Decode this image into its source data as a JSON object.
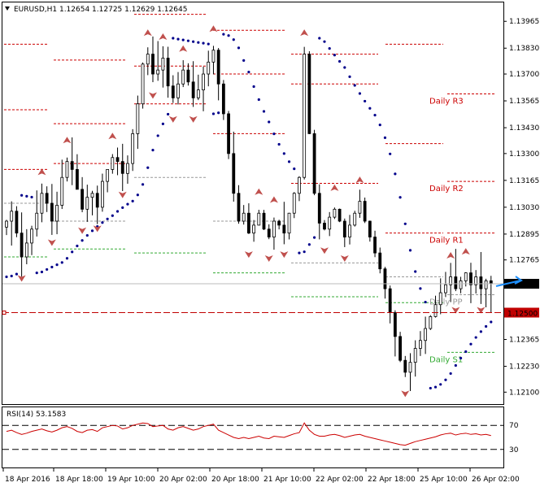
{
  "window": {
    "arrow_icon": "triangle-down-icon",
    "header": "EURUSD,H1  1.12654 1.12725 1.12629 1.12645",
    "rsi_label": "RSI(14) 53.1583"
  },
  "chart_data": [
    {
      "type": "line",
      "subtype": "candlestick",
      "symbol": "EURUSD",
      "timeframe": "H1",
      "ohlc_last": {
        "open": 1.12654,
        "high": 1.12725,
        "low": 1.12629,
        "close": 1.12645
      },
      "ylim": [
        1.1204,
        1.1406
      ],
      "yticks": [
        "1.13965",
        "1.13830",
        "1.13700",
        "1.13565",
        "1.13430",
        "1.13300",
        "1.13165",
        "1.13030",
        "1.12895",
        "1.12765",
        "1.12635",
        "1.12500",
        "1.12365",
        "1.12230",
        "1.12100"
      ],
      "xtick_labels": [
        "18 Apr 2016",
        "18 Apr 18:00",
        "19 Apr 10:00",
        "20 Apr 02:00",
        "20 Apr 18:00",
        "21 Apr 10:00",
        "22 Apr 02:00",
        "22 Apr 18:00",
        "25 Apr 10:00",
        "26 Apr 02:00"
      ],
      "current_price": "1.12645",
      "horizontal_line": {
        "price": "1.12500",
        "color": "#c00000"
      },
      "close_series": [
        1.1296,
        1.1301,
        1.129,
        1.1278,
        1.1285,
        1.1292,
        1.13,
        1.131,
        1.1305,
        1.1296,
        1.1304,
        1.1318,
        1.1326,
        1.1322,
        1.1312,
        1.1302,
        1.1308,
        1.131,
        1.1303,
        1.1316,
        1.1322,
        1.1328,
        1.1326,
        1.132,
        1.1325,
        1.134,
        1.1355,
        1.1375,
        1.138,
        1.137,
        1.1372,
        1.1378,
        1.1364,
        1.1358,
        1.1365,
        1.1372,
        1.1366,
        1.1358,
        1.1362,
        1.137,
        1.1376,
        1.1382,
        1.1365,
        1.135,
        1.133,
        1.131,
        1.1296,
        1.13,
        1.129,
        1.1294,
        1.13,
        1.1292,
        1.1288,
        1.1296,
        1.1294,
        1.129,
        1.13,
        1.131,
        1.1318,
        1.138,
        1.134,
        1.131,
        1.1295,
        1.1292,
        1.1298,
        1.1302,
        1.1296,
        1.1288,
        1.1294,
        1.13,
        1.1306,
        1.1296,
        1.1288,
        1.128,
        1.1272,
        1.1262,
        1.125,
        1.1238,
        1.1226,
        1.122,
        1.1225,
        1.1232,
        1.1236,
        1.1242,
        1.1248,
        1.1254,
        1.126,
        1.1264,
        1.1268,
        1.1262,
        1.1266,
        1.127,
        1.1264,
        1.1268,
        1.1262,
        1.1266,
        1.12645
      ],
      "parabolic_sar": {
        "color": "#00008b"
      },
      "fractal_color": "#c0504d",
      "pivot_levels": [
        {
          "label": "Daily R3",
          "color": "#cc0000"
        },
        {
          "label": "Daily R2",
          "color": "#cc0000"
        },
        {
          "label": "Daily R1",
          "color": "#cc0000"
        },
        {
          "label": "Daily PP",
          "color": "#999999"
        },
        {
          "label": "Daily S1",
          "color": "#33aa33"
        }
      ]
    },
    {
      "type": "line",
      "name": "RSI(14)",
      "value": 53.1583,
      "ylim": [
        0,
        100
      ],
      "levels": [
        70,
        30
      ],
      "color": "#cc0000",
      "values": [
        60,
        62,
        58,
        55,
        57,
        60,
        62,
        64,
        61,
        59,
        62,
        66,
        68,
        65,
        60,
        58,
        62,
        63,
        60,
        66,
        68,
        70,
        69,
        64,
        66,
        70,
        72,
        74,
        73,
        68,
        69,
        70,
        64,
        62,
        66,
        68,
        65,
        62,
        64,
        68,
        70,
        72,
        62,
        58,
        54,
        50,
        48,
        50,
        48,
        50,
        52,
        49,
        48,
        52,
        51,
        50,
        53,
        56,
        58,
        74,
        62,
        55,
        52,
        52,
        54,
        55,
        53,
        50,
        52,
        54,
        55,
        52,
        50,
        48,
        46,
        44,
        42,
        40,
        38,
        37,
        40,
        43,
        45,
        47,
        49,
        51,
        54,
        56,
        57,
        54,
        56,
        57,
        55,
        56,
        54,
        55,
        53
      ]
    }
  ]
}
